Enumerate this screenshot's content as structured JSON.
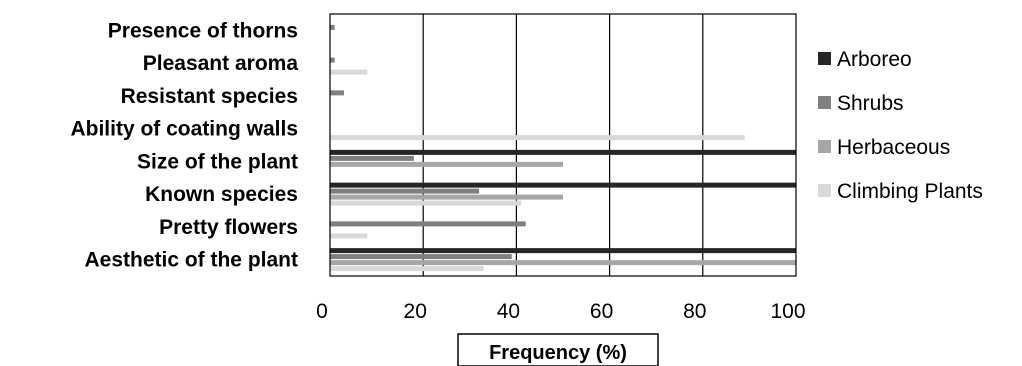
{
  "chart_data": {
    "type": "bar",
    "orientation": "horizontal",
    "categories": [
      "Presence of thorns",
      "Pleasant aroma",
      "Resistant species",
      "Ability of coating walls",
      "Size of the plant",
      "Known species",
      "Pretty flowers",
      "Aesthetic of the plant"
    ],
    "series": [
      {
        "name": "Arboreo",
        "color": "#262626",
        "values": [
          0,
          0,
          0,
          0,
          100,
          100,
          0,
          100
        ]
      },
      {
        "name": "Shrubs",
        "color": "#7f7f7f",
        "values": [
          1,
          1,
          3,
          0,
          18,
          32,
          42,
          39
        ]
      },
      {
        "name": "Herbaceous",
        "color": "#a6a6a6",
        "values": [
          0,
          0,
          0,
          0,
          50,
          50,
          0,
          100
        ]
      },
      {
        "name": "Climbing Plants",
        "color": "#d9d9d9",
        "values": [
          0,
          8,
          0,
          89,
          0,
          41,
          8,
          33
        ]
      }
    ],
    "xlabel": "Frequency (%)",
    "ylabel": "",
    "xlim": [
      0,
      100
    ],
    "xticks": [
      "0",
      "20",
      "40",
      "60",
      "80",
      "100"
    ],
    "grid": "vertical",
    "legend": "right"
  }
}
